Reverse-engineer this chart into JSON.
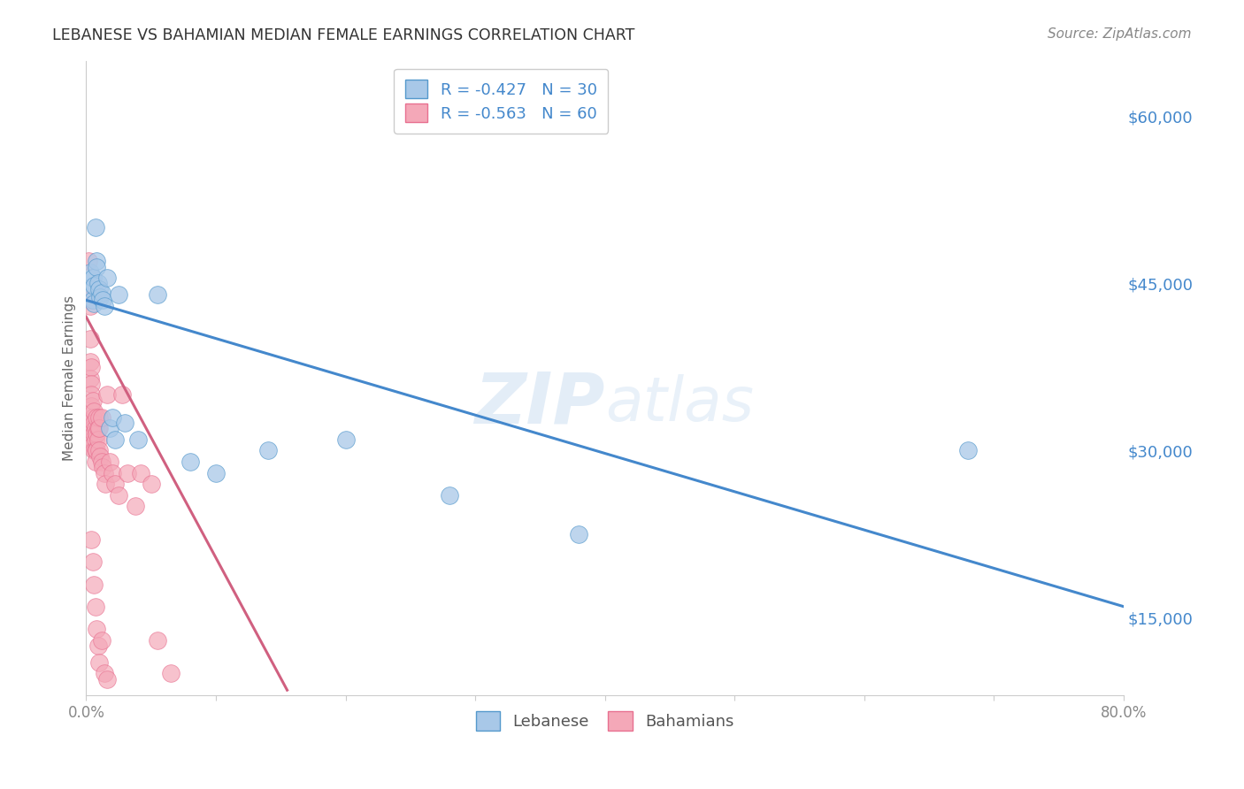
{
  "title": "LEBANESE VS BAHAMIAN MEDIAN FEMALE EARNINGS CORRELATION CHART",
  "source": "Source: ZipAtlas.com",
  "ylabel": "Median Female Earnings",
  "yticks": [
    15000,
    30000,
    45000,
    60000
  ],
  "ytick_labels": [
    "$15,000",
    "$30,000",
    "$45,000",
    "$60,000"
  ],
  "xlim": [
    0.0,
    0.8
  ],
  "ylim": [
    8000,
    65000
  ],
  "legend_label1": "Lebanese",
  "legend_label2": "Bahamians",
  "R1": -0.427,
  "N1": 30,
  "R2": -0.563,
  "N2": 60,
  "color_blue": "#A8C8E8",
  "color_pink": "#F4A8B8",
  "color_blue_dark": "#5599CC",
  "color_pink_dark": "#E87090",
  "color_line_blue": "#4488CC",
  "color_line_pink": "#D06080",
  "watermark_zip": "ZIP",
  "watermark_atlas": "atlas",
  "title_color": "#333333",
  "source_color": "#888888",
  "axis_label_color": "#666666",
  "tick_color_right": "#4488CC",
  "blue_points_x": [
    0.003,
    0.004,
    0.005,
    0.005,
    0.006,
    0.006,
    0.007,
    0.008,
    0.008,
    0.009,
    0.01,
    0.011,
    0.012,
    0.013,
    0.014,
    0.016,
    0.018,
    0.02,
    0.022,
    0.025,
    0.03,
    0.04,
    0.055,
    0.08,
    0.1,
    0.14,
    0.2,
    0.28,
    0.38,
    0.68
  ],
  "blue_points_y": [
    46000,
    44500,
    45500,
    43500,
    44800,
    43200,
    50000,
    47000,
    46500,
    45000,
    44500,
    43800,
    44200,
    43500,
    43000,
    45500,
    32000,
    33000,
    31000,
    44000,
    32500,
    31000,
    44000,
    29000,
    28000,
    30000,
    31000,
    26000,
    22500,
    30000
  ],
  "pink_points_x": [
    0.002,
    0.002,
    0.003,
    0.003,
    0.003,
    0.003,
    0.004,
    0.004,
    0.004,
    0.004,
    0.004,
    0.005,
    0.005,
    0.005,
    0.005,
    0.005,
    0.006,
    0.006,
    0.006,
    0.006,
    0.007,
    0.007,
    0.007,
    0.007,
    0.008,
    0.008,
    0.008,
    0.009,
    0.009,
    0.01,
    0.01,
    0.01,
    0.011,
    0.012,
    0.012,
    0.013,
    0.014,
    0.015,
    0.016,
    0.018,
    0.02,
    0.022,
    0.025,
    0.028,
    0.032,
    0.038,
    0.042,
    0.05,
    0.055,
    0.065,
    0.004,
    0.005,
    0.006,
    0.007,
    0.008,
    0.009,
    0.01,
    0.012,
    0.014,
    0.016
  ],
  "pink_points_y": [
    47000,
    43500,
    43000,
    40000,
    38000,
    36500,
    37500,
    36000,
    35000,
    34000,
    32500,
    34500,
    33000,
    32000,
    31000,
    30500,
    33500,
    32500,
    31500,
    30000,
    32000,
    31000,
    30000,
    29000,
    33000,
    31500,
    30000,
    32000,
    31000,
    33000,
    32000,
    30000,
    29500,
    33000,
    29000,
    28500,
    28000,
    27000,
    35000,
    29000,
    28000,
    27000,
    26000,
    35000,
    28000,
    25000,
    28000,
    27000,
    13000,
    10000,
    22000,
    20000,
    18000,
    16000,
    14000,
    12500,
    11000,
    13000,
    10000,
    9500
  ],
  "blue_trend_x": [
    0.0,
    0.8
  ],
  "blue_trend_y": [
    43500,
    16000
  ],
  "pink_trend_x": [
    0.0,
    0.155
  ],
  "pink_trend_y": [
    42000,
    8500
  ],
  "grid_color": "#DDDDDD",
  "background_color": "#FFFFFF",
  "plot_bg_color": "#FFFFFF"
}
